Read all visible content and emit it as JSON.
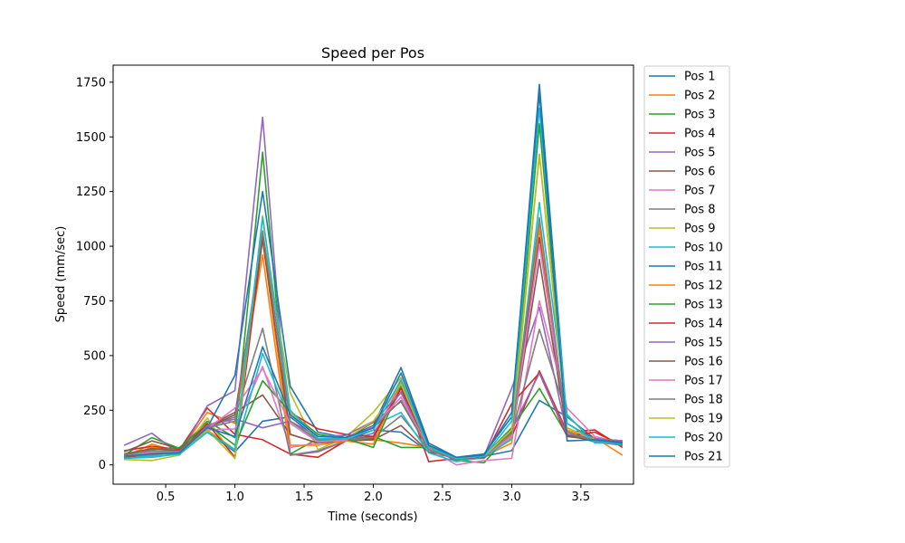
{
  "chart_data": {
    "type": "line",
    "title": "Speed per Pos",
    "xlabel": "Time (seconds)",
    "ylabel": "Speed (mm/sec)",
    "xlim": [
      0.12,
      3.88
    ],
    "ylim": [
      -88,
      1828
    ],
    "x_ticks": [
      0.5,
      1.0,
      1.5,
      2.0,
      2.5,
      3.0,
      3.5
    ],
    "x_tick_labels": [
      "0.5",
      "1.0",
      "1.5",
      "2.0",
      "2.5",
      "3.0",
      "3.5"
    ],
    "y_ticks": [
      0,
      250,
      500,
      750,
      1000,
      1250,
      1500,
      1750
    ],
    "y_tick_labels": [
      "0",
      "250",
      "500",
      "750",
      "1000",
      "1250",
      "1500",
      "1750"
    ],
    "grid": false,
    "legend_placement": "outside-right-top",
    "x": [
      0.2,
      0.4,
      0.6,
      0.8,
      1.0,
      1.2,
      1.4,
      1.6,
      1.8,
      2.0,
      2.2,
      2.4,
      2.6,
      2.8,
      3.0,
      3.2,
      3.4,
      3.6,
      3.8
    ],
    "series": [
      {
        "name": "Pos 1",
        "color": "#1f77b4",
        "values": [
          40,
          50,
          65,
          150,
          60,
          200,
          220,
          120,
          110,
          160,
          150,
          60,
          30,
          40,
          65,
          295,
          220,
          120,
          110
        ]
      },
      {
        "name": "Pos 2",
        "color": "#ff7f0e",
        "values": [
          35,
          95,
          60,
          240,
          190,
          960,
          45,
          60,
          110,
          115,
          100,
          80,
          30,
          40,
          100,
          1080,
          130,
          125,
          45
        ]
      },
      {
        "name": "Pos 3",
        "color": "#2ca02c",
        "values": [
          45,
          125,
          75,
          200,
          125,
          1430,
          50,
          120,
          115,
          130,
          80,
          80,
          20,
          10,
          150,
          1560,
          160,
          115,
          95
        ]
      },
      {
        "name": "Pos 4",
        "color": "#d62728",
        "values": [
          65,
          85,
          70,
          260,
          140,
          115,
          50,
          35,
          110,
          120,
          375,
          15,
          30,
          45,
          130,
          430,
          150,
          160,
          80
        ]
      },
      {
        "name": "Pos 5",
        "color": "#9467bd",
        "values": [
          90,
          145,
          50,
          270,
          340,
          1590,
          45,
          60,
          110,
          145,
          335,
          80,
          30,
          40,
          350,
          720,
          140,
          105,
          90
        ]
      },
      {
        "name": "Pos 6",
        "color": "#8c564b",
        "values": [
          60,
          110,
          75,
          175,
          240,
          320,
          140,
          100,
          110,
          115,
          180,
          60,
          30,
          40,
          130,
          940,
          140,
          120,
          105
        ]
      },
      {
        "name": "Pos 7",
        "color": "#e377c2",
        "values": [
          30,
          75,
          60,
          160,
          165,
          450,
          80,
          100,
          140,
          130,
          380,
          75,
          0,
          20,
          30,
          750,
          260,
          130,
          100
        ]
      },
      {
        "name": "Pos 8",
        "color": "#7f7f7f",
        "values": [
          35,
          45,
          60,
          170,
          220,
          625,
          45,
          65,
          110,
          125,
          225,
          70,
          25,
          30,
          140,
          620,
          225,
          110,
          90
        ]
      },
      {
        "name": "Pos 9",
        "color": "#bcbd22",
        "values": [
          25,
          20,
          45,
          215,
          30,
          1060,
          330,
          70,
          125,
          240,
          400,
          80,
          30,
          40,
          115,
          1420,
          160,
          115,
          100
        ]
      },
      {
        "name": "Pos 10",
        "color": "#17becf",
        "values": [
          30,
          35,
          50,
          150,
          65,
          510,
          200,
          110,
          115,
          180,
          240,
          55,
          15,
          35,
          120,
          1200,
          230,
          100,
          100
        ]
      },
      {
        "name": "Pos 11",
        "color": "#1f77b4",
        "values": [
          50,
          55,
          60,
          170,
          410,
          1250,
          360,
          150,
          125,
          180,
          445,
          100,
          35,
          50,
          220,
          1740,
          190,
          115,
          100
        ]
      },
      {
        "name": "Pos 12",
        "color": "#ff7f0e",
        "values": [
          35,
          80,
          65,
          160,
          70,
          1030,
          90,
          90,
          110,
          95,
          385,
          85,
          30,
          45,
          135,
          1100,
          155,
          120,
          110
        ]
      },
      {
        "name": "Pos 13",
        "color": "#2ca02c",
        "values": [
          35,
          70,
          80,
          185,
          90,
          385,
          240,
          140,
          120,
          80,
          360,
          90,
          30,
          40,
          170,
          350,
          135,
          110,
          105
        ]
      },
      {
        "name": "Pos 14",
        "color": "#d62728",
        "values": [
          30,
          60,
          55,
          190,
          35,
          1040,
          240,
          165,
          140,
          130,
          350,
          80,
          30,
          35,
          280,
          420,
          130,
          150,
          90
        ]
      },
      {
        "name": "Pos 15",
        "color": "#9467bd",
        "values": [
          40,
          55,
          50,
          180,
          210,
          170,
          200,
          130,
          135,
          200,
          330,
          70,
          25,
          40,
          160,
          420,
          140,
          120,
          110
        ]
      },
      {
        "name": "Pos 16",
        "color": "#8c564b",
        "values": [
          50,
          75,
          65,
          170,
          230,
          1030,
          140,
          100,
          120,
          195,
          290,
          70,
          30,
          35,
          150,
          1040,
          130,
          115,
          105
        ]
      },
      {
        "name": "Pos 17",
        "color": "#e377c2",
        "values": [
          40,
          60,
          60,
          165,
          260,
          440,
          190,
          105,
          115,
          175,
          310,
          75,
          30,
          40,
          130,
          1010,
          170,
          115,
          100
        ]
      },
      {
        "name": "Pos 18",
        "color": "#7f7f7f",
        "values": [
          45,
          65,
          60,
          170,
          200,
          1070,
          200,
          115,
          120,
          170,
          295,
          70,
          30,
          40,
          145,
          1130,
          150,
          110,
          95
        ]
      },
      {
        "name": "Pos 19",
        "color": "#bcbd22",
        "values": [
          40,
          50,
          55,
          160,
          30,
          1140,
          240,
          120,
          120,
          200,
          370,
          80,
          30,
          40,
          160,
          1420,
          170,
          115,
          95
        ]
      },
      {
        "name": "Pos 20",
        "color": "#17becf",
        "values": [
          30,
          40,
          50,
          150,
          70,
          1130,
          250,
          120,
          120,
          160,
          390,
          80,
          30,
          40,
          200,
          1630,
          190,
          110,
          95
        ]
      },
      {
        "name": "Pos 21",
        "color": "#1f77b4",
        "values": [
          40,
          50,
          55,
          170,
          130,
          540,
          230,
          130,
          125,
          170,
          420,
          90,
          35,
          45,
          240,
          1700,
          110,
          115,
          100
        ]
      }
    ]
  }
}
